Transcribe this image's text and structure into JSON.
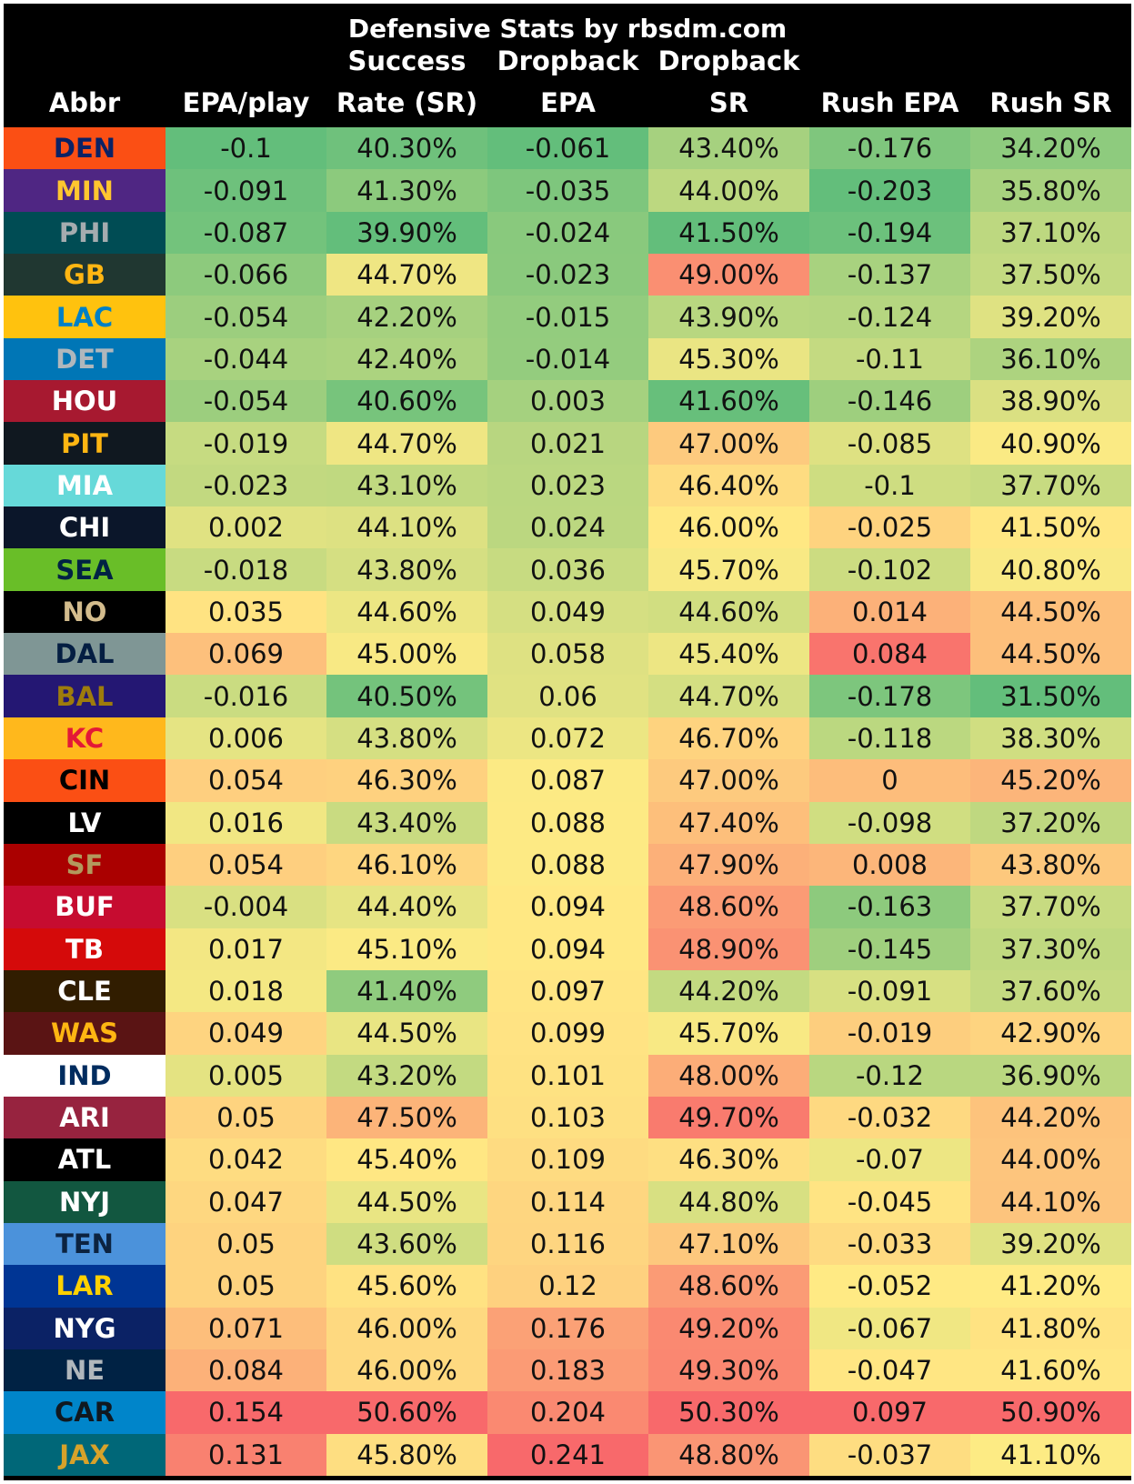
{
  "title": "Defensive Stats by rbsdm.com",
  "headers": [
    {
      "l1": "",
      "l2": "Abbr"
    },
    {
      "l1": "",
      "l2": "EPA/play"
    },
    {
      "l1": "Success",
      "l2": "Rate (SR)"
    },
    {
      "l1": "Dropback",
      "l2": "EPA"
    },
    {
      "l1": "Dropback",
      "l2": "SR"
    },
    {
      "l1": "",
      "l2": "Rush EPA"
    },
    {
      "l1": "",
      "l2": "Rush SR"
    }
  ],
  "rows": [
    {
      "abbr": "DEN",
      "bg": "#fb4f14",
      "fg": "#0b2265",
      "epa": "-0.1",
      "sr": "40.30%",
      "db_epa": "-0.061",
      "db_sr": "43.40%",
      "rush_epa": "-0.176",
      "rush_sr": "34.20%"
    },
    {
      "abbr": "MIN",
      "bg": "#4f2683",
      "fg": "#ffc62f",
      "epa": "-0.091",
      "sr": "41.30%",
      "db_epa": "-0.035",
      "db_sr": "44.00%",
      "rush_epa": "-0.203",
      "rush_sr": "35.80%"
    },
    {
      "abbr": "PHI",
      "bg": "#004c54",
      "fg": "#a5acaf",
      "epa": "-0.087",
      "sr": "39.90%",
      "db_epa": "-0.024",
      "db_sr": "41.50%",
      "rush_epa": "-0.194",
      "rush_sr": "37.10%"
    },
    {
      "abbr": "GB",
      "bg": "#203731",
      "fg": "#ffb612",
      "epa": "-0.066",
      "sr": "44.70%",
      "db_epa": "-0.023",
      "db_sr": "49.00%",
      "rush_epa": "-0.137",
      "rush_sr": "37.50%"
    },
    {
      "abbr": "LAC",
      "bg": "#ffc20e",
      "fg": "#0080c6",
      "epa": "-0.054",
      "sr": "42.20%",
      "db_epa": "-0.015",
      "db_sr": "43.90%",
      "rush_epa": "-0.124",
      "rush_sr": "39.20%"
    },
    {
      "abbr": "DET",
      "bg": "#0076b6",
      "fg": "#b0b7bc",
      "epa": "-0.044",
      "sr": "42.40%",
      "db_epa": "-0.014",
      "db_sr": "45.30%",
      "rush_epa": "-0.11",
      "rush_sr": "36.10%"
    },
    {
      "abbr": "HOU",
      "bg": "#a71930",
      "fg": "#ffffff",
      "epa": "-0.054",
      "sr": "40.60%",
      "db_epa": "0.003",
      "db_sr": "41.60%",
      "rush_epa": "-0.146",
      "rush_sr": "38.90%"
    },
    {
      "abbr": "PIT",
      "bg": "#101820",
      "fg": "#ffb612",
      "epa": "-0.019",
      "sr": "44.70%",
      "db_epa": "0.021",
      "db_sr": "47.00%",
      "rush_epa": "-0.085",
      "rush_sr": "40.90%"
    },
    {
      "abbr": "MIA",
      "bg": "#66d9d9",
      "fg": "#ffffff",
      "epa": "-0.023",
      "sr": "43.10%",
      "db_epa": "0.023",
      "db_sr": "46.40%",
      "rush_epa": "-0.1",
      "rush_sr": "37.70%"
    },
    {
      "abbr": "CHI",
      "bg": "#0b162a",
      "fg": "#ffffff",
      "epa": "0.002",
      "sr": "44.10%",
      "db_epa": "0.024",
      "db_sr": "46.00%",
      "rush_epa": "-0.025",
      "rush_sr": "41.50%"
    },
    {
      "abbr": "SEA",
      "bg": "#69be28",
      "fg": "#002244",
      "epa": "-0.018",
      "sr": "43.80%",
      "db_epa": "0.036",
      "db_sr": "45.70%",
      "rush_epa": "-0.102",
      "rush_sr": "40.80%"
    },
    {
      "abbr": "NO",
      "bg": "#000000",
      "fg": "#d3bc8d",
      "epa": "0.035",
      "sr": "44.60%",
      "db_epa": "0.049",
      "db_sr": "44.60%",
      "rush_epa": "0.014",
      "rush_sr": "44.50%"
    },
    {
      "abbr": "DAL",
      "bg": "#7f9695",
      "fg": "#041e42",
      "epa": "0.069",
      "sr": "45.00%",
      "db_epa": "0.058",
      "db_sr": "45.40%",
      "rush_epa": "0.084",
      "rush_sr": "44.50%"
    },
    {
      "abbr": "BAL",
      "bg": "#241773",
      "fg": "#9e7c0c",
      "epa": "-0.016",
      "sr": "40.50%",
      "db_epa": "0.06",
      "db_sr": "44.70%",
      "rush_epa": "-0.178",
      "rush_sr": "31.50%"
    },
    {
      "abbr": "KC",
      "bg": "#ffb81c",
      "fg": "#e31837",
      "epa": "0.006",
      "sr": "43.80%",
      "db_epa": "0.072",
      "db_sr": "46.70%",
      "rush_epa": "-0.118",
      "rush_sr": "38.30%"
    },
    {
      "abbr": "CIN",
      "bg": "#fb4f14",
      "fg": "#000000",
      "epa": "0.054",
      "sr": "46.30%",
      "db_epa": "0.087",
      "db_sr": "47.00%",
      "rush_epa": "0",
      "rush_sr": "45.20%"
    },
    {
      "abbr": "LV",
      "bg": "#000000",
      "fg": "#ffffff",
      "epa": "0.016",
      "sr": "43.40%",
      "db_epa": "0.088",
      "db_sr": "47.40%",
      "rush_epa": "-0.098",
      "rush_sr": "37.20%"
    },
    {
      "abbr": "SF",
      "bg": "#aa0000",
      "fg": "#b3995d",
      "epa": "0.054",
      "sr": "46.10%",
      "db_epa": "0.088",
      "db_sr": "47.90%",
      "rush_epa": "0.008",
      "rush_sr": "43.80%"
    },
    {
      "abbr": "BUF",
      "bg": "#c60c30",
      "fg": "#ffffff",
      "epa": "-0.004",
      "sr": "44.40%",
      "db_epa": "0.094",
      "db_sr": "48.60%",
      "rush_epa": "-0.163",
      "rush_sr": "37.70%"
    },
    {
      "abbr": "TB",
      "bg": "#d50a0a",
      "fg": "#ffffff",
      "epa": "0.017",
      "sr": "45.10%",
      "db_epa": "0.094",
      "db_sr": "48.90%",
      "rush_epa": "-0.145",
      "rush_sr": "37.30%"
    },
    {
      "abbr": "CLE",
      "bg": "#311d00",
      "fg": "#ffffff",
      "epa": "0.018",
      "sr": "41.40%",
      "db_epa": "0.097",
      "db_sr": "44.20%",
      "rush_epa": "-0.091",
      "rush_sr": "37.60%"
    },
    {
      "abbr": "WAS",
      "bg": "#5a1414",
      "fg": "#ffb612",
      "epa": "0.049",
      "sr": "44.50%",
      "db_epa": "0.099",
      "db_sr": "45.70%",
      "rush_epa": "-0.019",
      "rush_sr": "42.90%"
    },
    {
      "abbr": "IND",
      "bg": "#ffffff",
      "fg": "#002c5f",
      "epa": "0.005",
      "sr": "43.20%",
      "db_epa": "0.101",
      "db_sr": "48.00%",
      "rush_epa": "-0.12",
      "rush_sr": "36.90%"
    },
    {
      "abbr": "ARI",
      "bg": "#97233f",
      "fg": "#ffffff",
      "epa": "0.05",
      "sr": "47.50%",
      "db_epa": "0.103",
      "db_sr": "49.70%",
      "rush_epa": "-0.032",
      "rush_sr": "44.20%"
    },
    {
      "abbr": "ATL",
      "bg": "#000000",
      "fg": "#ffffff",
      "epa": "0.042",
      "sr": "45.40%",
      "db_epa": "0.109",
      "db_sr": "46.30%",
      "rush_epa": "-0.07",
      "rush_sr": "44.00%"
    },
    {
      "abbr": "NYJ",
      "bg": "#125740",
      "fg": "#ffffff",
      "epa": "0.047",
      "sr": "44.50%",
      "db_epa": "0.114",
      "db_sr": "44.80%",
      "rush_epa": "-0.045",
      "rush_sr": "44.10%"
    },
    {
      "abbr": "TEN",
      "bg": "#4b92db",
      "fg": "#0c2340",
      "epa": "0.05",
      "sr": "43.60%",
      "db_epa": "0.116",
      "db_sr": "47.10%",
      "rush_epa": "-0.033",
      "rush_sr": "39.20%"
    },
    {
      "abbr": "LAR",
      "bg": "#003594",
      "fg": "#ffd100",
      "epa": "0.05",
      "sr": "45.60%",
      "db_epa": "0.12",
      "db_sr": "48.60%",
      "rush_epa": "-0.052",
      "rush_sr": "41.20%"
    },
    {
      "abbr": "NYG",
      "bg": "#0b2265",
      "fg": "#ffffff",
      "epa": "0.071",
      "sr": "46.00%",
      "db_epa": "0.176",
      "db_sr": "49.20%",
      "rush_epa": "-0.067",
      "rush_sr": "41.80%"
    },
    {
      "abbr": "NE",
      "bg": "#002244",
      "fg": "#b0b7bc",
      "epa": "0.084",
      "sr": "46.00%",
      "db_epa": "0.183",
      "db_sr": "49.30%",
      "rush_epa": "-0.047",
      "rush_sr": "41.60%"
    },
    {
      "abbr": "CAR",
      "bg": "#0085ca",
      "fg": "#101820",
      "epa": "0.154",
      "sr": "50.60%",
      "db_epa": "0.204",
      "db_sr": "50.30%",
      "rush_epa": "0.097",
      "rush_sr": "50.90%"
    },
    {
      "abbr": "JAX",
      "bg": "#006778",
      "fg": "#d7a22a",
      "epa": "0.131",
      "sr": "45.80%",
      "db_epa": "0.241",
      "db_sr": "48.80%",
      "rush_epa": "-0.037",
      "rush_sr": "41.10%"
    }
  ]
}
